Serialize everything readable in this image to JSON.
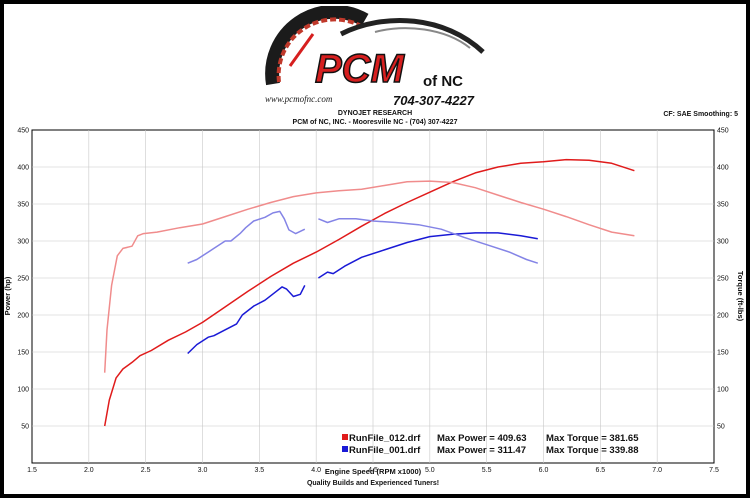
{
  "logo": {
    "brand": "PCM",
    "suffix": "of NC",
    "url": "www.pcmofnc.com",
    "phone": "704-307-4227"
  },
  "header": {
    "line1": "DYNOJET RESEARCH",
    "line2": "PCM of NC, INC. - Mooresville NC - (704) 307-4227",
    "cf": "CF: SAE  Smoothing: 5"
  },
  "chart_data": {
    "type": "line",
    "xlabel": "Engine Speed (RPM x1000)",
    "ylabel_left": "Power (hp)",
    "ylabel_right": "Torque (ft-lbs)",
    "xlim": [
      1.5,
      7.5
    ],
    "ylim": [
      0,
      450
    ],
    "x_ticks": [
      "1.5",
      "2.0",
      "2.5",
      "3.0",
      "3.5",
      "4.0",
      "4.5",
      "5.0",
      "5.5",
      "6.0",
      "6.5",
      "7.0",
      "7.5"
    ],
    "y_ticks": [
      "0",
      "50",
      "100",
      "150",
      "200",
      "250",
      "300",
      "350",
      "400",
      "450"
    ],
    "grid": true,
    "footer": "Quality Builds and Experienced Tuners!",
    "colors": {
      "run012_power": "#e01b1b",
      "run012_torque": "#f08c8c",
      "run001_power": "#1a1ad6",
      "run001_torque": "#8484e6"
    },
    "legend": [
      {
        "file": "RunFile_012.drf",
        "max_power_label": "Max Power = 409.63",
        "max_torque_label": "Max Torque = 381.65",
        "color": "#e01b1b"
      },
      {
        "file": "RunFile_001.drf",
        "max_power_label": "Max Power = 311.47",
        "max_torque_label": "Max Torque = 339.88",
        "color": "#1a1ad6"
      }
    ],
    "series": [
      {
        "name": "RunFile_012.drf",
        "measure": "power",
        "color": "#e01b1b",
        "points": [
          [
            2.14,
            50
          ],
          [
            2.18,
            85
          ],
          [
            2.24,
            115
          ],
          [
            2.3,
            127
          ],
          [
            2.38,
            136
          ],
          [
            2.45,
            145
          ],
          [
            2.55,
            152
          ],
          [
            2.7,
            166
          ],
          [
            2.85,
            177
          ],
          [
            3.0,
            190
          ],
          [
            3.2,
            211
          ],
          [
            3.4,
            232
          ],
          [
            3.6,
            252
          ],
          [
            3.8,
            270
          ],
          [
            4.0,
            285
          ],
          [
            4.2,
            302
          ],
          [
            4.4,
            320
          ],
          [
            4.6,
            337
          ],
          [
            4.8,
            352
          ],
          [
            5.0,
            366
          ],
          [
            5.2,
            380
          ],
          [
            5.4,
            392
          ],
          [
            5.6,
            400
          ],
          [
            5.8,
            405
          ],
          [
            6.0,
            407
          ],
          [
            6.2,
            410
          ],
          [
            6.4,
            409
          ],
          [
            6.6,
            405
          ],
          [
            6.8,
            395
          ]
        ]
      },
      {
        "name": "RunFile_012.drf",
        "measure": "torque",
        "color": "#f08c8c",
        "points": [
          [
            2.14,
            122
          ],
          [
            2.16,
            180
          ],
          [
            2.2,
            240
          ],
          [
            2.25,
            280
          ],
          [
            2.3,
            290
          ],
          [
            2.38,
            293
          ],
          [
            2.43,
            307
          ],
          [
            2.48,
            310
          ],
          [
            2.6,
            312
          ],
          [
            2.8,
            318
          ],
          [
            3.0,
            323
          ],
          [
            3.2,
            333
          ],
          [
            3.4,
            343
          ],
          [
            3.6,
            352
          ],
          [
            3.8,
            360
          ],
          [
            4.0,
            365
          ],
          [
            4.2,
            368
          ],
          [
            4.4,
            370
          ],
          [
            4.6,
            375
          ],
          [
            4.8,
            380
          ],
          [
            5.0,
            381
          ],
          [
            5.2,
            379
          ],
          [
            5.4,
            372
          ],
          [
            5.6,
            362
          ],
          [
            5.8,
            352
          ],
          [
            6.0,
            343
          ],
          [
            6.2,
            333
          ],
          [
            6.4,
            322
          ],
          [
            6.6,
            312
          ],
          [
            6.8,
            307
          ]
        ]
      },
      {
        "name": "RunFile_001.drf",
        "measure": "power",
        "color": "#1a1ad6",
        "points": [
          [
            2.87,
            148
          ],
          [
            2.95,
            160
          ],
          [
            3.05,
            170
          ],
          [
            3.1,
            172
          ],
          [
            3.2,
            180
          ],
          [
            3.3,
            188
          ],
          [
            3.35,
            200
          ],
          [
            3.45,
            212
          ],
          [
            3.55,
            220
          ],
          [
            3.65,
            232
          ],
          [
            3.7,
            238
          ],
          [
            3.74,
            235
          ],
          [
            3.8,
            225
          ],
          [
            3.86,
            228
          ],
          [
            3.9,
            240
          ],
          null,
          [
            4.02,
            250
          ],
          [
            4.1,
            258
          ],
          [
            4.15,
            256
          ],
          [
            4.25,
            266
          ],
          [
            4.4,
            278
          ],
          [
            4.6,
            288
          ],
          [
            4.8,
            298
          ],
          [
            5.0,
            306
          ],
          [
            5.2,
            309
          ],
          [
            5.4,
            311
          ],
          [
            5.6,
            311
          ],
          [
            5.8,
            307
          ],
          [
            5.95,
            303
          ]
        ]
      },
      {
        "name": "RunFile_001.drf",
        "measure": "torque",
        "color": "#8484e6",
        "points": [
          [
            2.87,
            270
          ],
          [
            2.95,
            275
          ],
          [
            3.05,
            285
          ],
          [
            3.1,
            290
          ],
          [
            3.2,
            300
          ],
          [
            3.25,
            300
          ],
          [
            3.33,
            310
          ],
          [
            3.38,
            318
          ],
          [
            3.45,
            327
          ],
          [
            3.55,
            332
          ],
          [
            3.62,
            338
          ],
          [
            3.68,
            340
          ],
          [
            3.72,
            330
          ],
          [
            3.76,
            315
          ],
          [
            3.82,
            310
          ],
          [
            3.9,
            316
          ],
          null,
          [
            4.02,
            330
          ],
          [
            4.1,
            325
          ],
          [
            4.2,
            330
          ],
          [
            4.35,
            330
          ],
          [
            4.5,
            327
          ],
          [
            4.7,
            325
          ],
          [
            4.9,
            322
          ],
          [
            5.1,
            316
          ],
          [
            5.3,
            305
          ],
          [
            5.5,
            295
          ],
          [
            5.7,
            285
          ],
          [
            5.85,
            275
          ],
          [
            5.95,
            270
          ]
        ]
      }
    ]
  }
}
